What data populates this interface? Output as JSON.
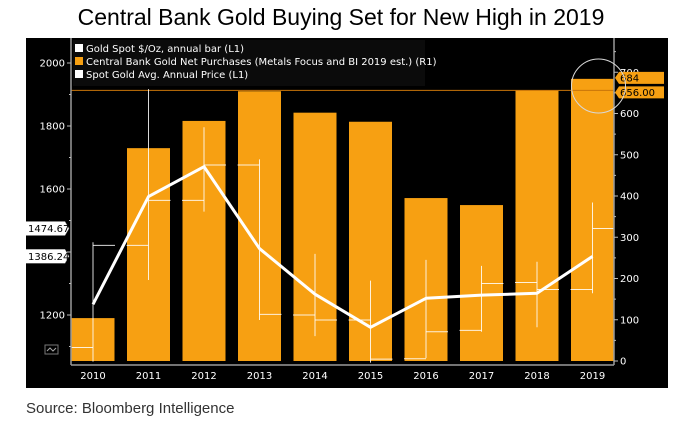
{
  "chart_data": {
    "type": "bar",
    "title": "Central Bank Gold Buying Set for New High in 2019",
    "source": "Source: Bloomberg Intelligence",
    "categories": [
      "2010",
      "2011",
      "2012",
      "2013",
      "2014",
      "2015",
      "2016",
      "2017",
      "2018",
      "2019"
    ],
    "left_axis": {
      "ylim": [
        1040,
        2060
      ],
      "ticks": [
        1200,
        1400,
        1600,
        1800,
        2000
      ],
      "tick_labels": [
        "1200",
        "",
        "1600",
        "1800",
        "2000"
      ]
    },
    "right_axis": {
      "ylim": [
        0,
        722
      ],
      "ticks": [
        0,
        100,
        200,
        300,
        400,
        500,
        600,
        700
      ],
      "tick_labels": [
        "0",
        "100",
        "200",
        "300",
        "400",
        "500",
        "600",
        "700"
      ]
    },
    "legend": {
      "placement": "top-left",
      "items": [
        {
          "label": "Gold Spot $/Oz, annual bar (L1)",
          "color": "#ffffff"
        },
        {
          "label": "Central Bank Gold Net Purchases (Metals Focus and BI 2019 est.) (R1)",
          "color": "#f7a012"
        },
        {
          "label": "Spot Gold Avg. Annual Price  (L1)",
          "color": "#ffffff"
        }
      ]
    },
    "series": [
      {
        "name": "Central Bank Gold Net Purchases (Metals Focus and BI 2019 est.) (R1)",
        "type": "bar",
        "axis": "right",
        "color": "#f7a012",
        "values": [
          104,
          516,
          582,
          654,
          602,
          580,
          395,
          378,
          656,
          684
        ]
      },
      {
        "name": "Spot Gold Avg. Annual Price (L1)",
        "type": "line",
        "axis": "left",
        "color": "#ffffff",
        "values": [
          1234,
          1576,
          1671,
          1411,
          1266,
          1161,
          1253,
          1263,
          1269,
          1386.24
        ]
      },
      {
        "name": "Gold Spot $/Oz, annual bar (L1)",
        "type": "ohlc",
        "axis": "left",
        "color": "#ffffff",
        "open": [
          1097,
          1421,
          1564,
          1676,
          1200,
          1184,
          1061,
          1151,
          1303,
          1281
        ],
        "high": [
          1431,
          1917,
          1796,
          1694,
          1394,
          1309,
          1375,
          1356,
          1369,
          1557
        ],
        "low": [
          1052,
          1311,
          1528,
          1184,
          1133,
          1049,
          1063,
          1147,
          1161,
          1269
        ],
        "close": [
          1421,
          1564,
          1676,
          1202,
          1184,
          1060,
          1147,
          1300,
          1281,
          1474.67
        ]
      }
    ],
    "annotations": {
      "left_labels": [
        "1474.67",
        "1386.24"
      ],
      "left_label_values": [
        1474.67,
        1386.24
      ],
      "right_labels": [
        "684",
        "656.00"
      ],
      "right_label_values": [
        684,
        656
      ],
      "reference_line_value_right": 656,
      "highlight_circle_category": "2019"
    }
  }
}
